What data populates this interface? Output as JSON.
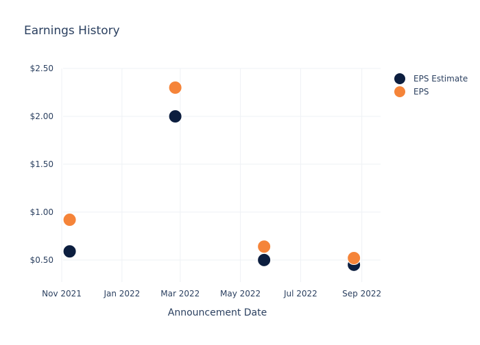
{
  "chart_data": {
    "type": "scatter",
    "title": "Earnings History",
    "xlabel": "Announcement Date",
    "ylabel": "",
    "x_ticks": [
      "Nov 2021",
      "Jan 2022",
      "Mar 2022",
      "May 2022",
      "Jul 2022",
      "Sep 2022"
    ],
    "x_tick_dates": [
      "2021-11-01",
      "2022-01-01",
      "2022-03-01",
      "2022-05-01",
      "2022-07-01",
      "2022-09-01"
    ],
    "x_range": [
      "2021-10-25",
      "2022-09-20"
    ],
    "y_ticks": [
      "$0.50",
      "$1.00",
      "$1.50",
      "$2.00",
      "$2.50"
    ],
    "y_tick_values": [
      0.5,
      1.0,
      1.5,
      2.0,
      2.5
    ],
    "ylim": [
      0.27,
      2.5
    ],
    "grid": true,
    "legend_position": "top-right",
    "series": [
      {
        "name": "EPS Estimate",
        "color": "#0c1e3f",
        "points": [
          {
            "x": "2021-11-09",
            "y": 0.59
          },
          {
            "x": "2022-02-24",
            "y": 2.0
          },
          {
            "x": "2022-05-25",
            "y": 0.5
          },
          {
            "x": "2022-08-24",
            "y": 0.45
          }
        ]
      },
      {
        "name": "EPS",
        "color": "#f58439",
        "points": [
          {
            "x": "2021-11-09",
            "y": 0.92
          },
          {
            "x": "2022-02-24",
            "y": 2.3
          },
          {
            "x": "2022-05-25",
            "y": 0.64
          },
          {
            "x": "2022-08-24",
            "y": 0.52
          }
        ]
      }
    ]
  }
}
